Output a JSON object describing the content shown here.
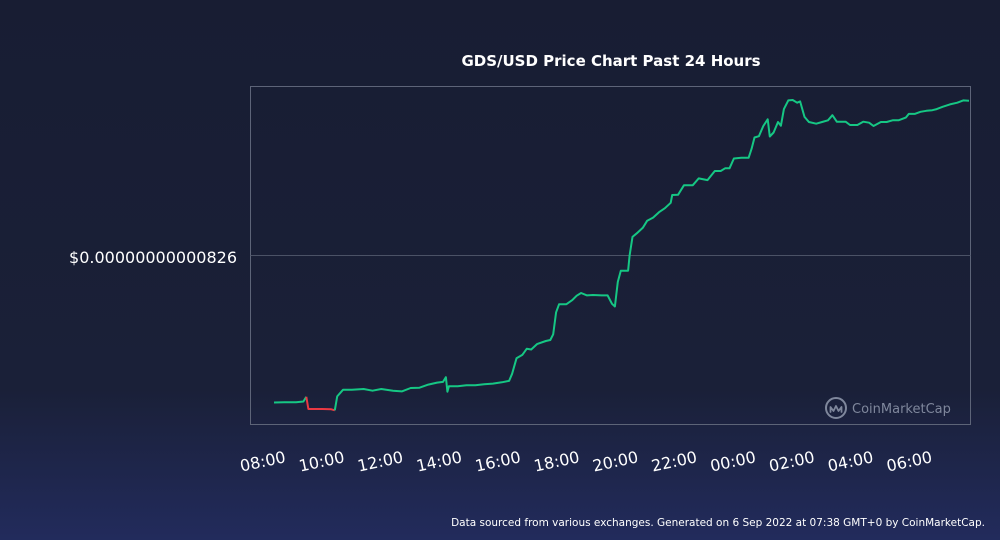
{
  "chart_data": {
    "type": "line",
    "title": "GDS/USD Price Chart Past 24 Hours",
    "xlabel": "",
    "ylabel": "",
    "ytick_labels": [
      "$0.00000000000826"
    ],
    "xtick_labels": [
      "08:00",
      "10:00",
      "12:00",
      "14:00",
      "16:00",
      "18:00",
      "20:00",
      "22:00",
      "00:00",
      "02:00",
      "04:00",
      "06:00"
    ],
    "x_unit": "hours since 06:00",
    "xlim": [
      1.15,
      25.65
    ],
    "ylim": [
      0,
      100
    ],
    "y_unit": "relative price (0 = chart bottom, 100 = chart top)",
    "grid": "single horizontal line at $0.00000000000826",
    "colors": {
      "up": "#16c784",
      "down": "#ea3943",
      "frame": "#5d6478",
      "gridline": "#4b5266"
    },
    "series": [
      {
        "values": [
          [
            1.95,
            6.5
          ],
          [
            2.3,
            6.6
          ],
          [
            2.7,
            6.6
          ],
          [
            2.95,
            6.8
          ],
          [
            3.05,
            8.2
          ],
          [
            3.12,
            4.6
          ],
          [
            3.3,
            4.6
          ],
          [
            3.6,
            4.6
          ],
          [
            3.9,
            4.5
          ],
          [
            4.02,
            4.2
          ],
          [
            4.1,
            8.3
          ],
          [
            4.3,
            10.3
          ],
          [
            4.6,
            10.3
          ],
          [
            5.0,
            10.5
          ],
          [
            5.3,
            10.0
          ],
          [
            5.6,
            10.5
          ],
          [
            6.0,
            10.0
          ],
          [
            6.3,
            9.8
          ],
          [
            6.6,
            10.8
          ],
          [
            6.9,
            10.9
          ],
          [
            7.2,
            11.8
          ],
          [
            7.5,
            12.4
          ],
          [
            7.7,
            12.6
          ],
          [
            7.8,
            14.0
          ],
          [
            7.85,
            9.7
          ],
          [
            7.9,
            11.3
          ],
          [
            8.2,
            11.3
          ],
          [
            8.5,
            11.6
          ],
          [
            8.8,
            11.6
          ],
          [
            9.1,
            11.9
          ],
          [
            9.4,
            12.1
          ],
          [
            9.7,
            12.5
          ],
          [
            9.95,
            12.9
          ],
          [
            10.05,
            15.0
          ],
          [
            10.2,
            19.6
          ],
          [
            10.4,
            20.6
          ],
          [
            10.55,
            22.4
          ],
          [
            10.7,
            22.2
          ],
          [
            10.9,
            23.8
          ],
          [
            11.2,
            24.7
          ],
          [
            11.35,
            25.0
          ],
          [
            11.45,
            26.7
          ],
          [
            11.55,
            33.2
          ],
          [
            11.65,
            35.6
          ],
          [
            11.9,
            35.6
          ],
          [
            12.1,
            36.8
          ],
          [
            12.25,
            38.1
          ],
          [
            12.4,
            38.9
          ],
          [
            12.6,
            38.2
          ],
          [
            12.8,
            38.3
          ],
          [
            13.1,
            38.2
          ],
          [
            13.3,
            38.2
          ],
          [
            13.45,
            35.7
          ],
          [
            13.55,
            34.9
          ],
          [
            13.65,
            42.2
          ],
          [
            13.75,
            45.5
          ],
          [
            14.0,
            45.5
          ],
          [
            14.05,
            50.0
          ],
          [
            14.15,
            55.5
          ],
          [
            14.3,
            56.6
          ],
          [
            14.5,
            58.2
          ],
          [
            14.65,
            60.3
          ],
          [
            14.85,
            61.2
          ],
          [
            15.05,
            62.8
          ],
          [
            15.25,
            64.0
          ],
          [
            15.45,
            65.6
          ],
          [
            15.5,
            67.9
          ],
          [
            15.7,
            68.0
          ],
          [
            15.9,
            70.8
          ],
          [
            16.2,
            70.8
          ],
          [
            16.4,
            72.8
          ],
          [
            16.7,
            72.3
          ],
          [
            16.95,
            75.0
          ],
          [
            17.15,
            75.0
          ],
          [
            17.3,
            75.8
          ],
          [
            17.45,
            75.8
          ],
          [
            17.6,
            78.7
          ],
          [
            17.85,
            78.9
          ],
          [
            18.1,
            78.9
          ],
          [
            18.2,
            81.6
          ],
          [
            18.3,
            84.9
          ],
          [
            18.45,
            85.3
          ],
          [
            18.6,
            88.3
          ],
          [
            18.75,
            90.3
          ],
          [
            18.82,
            85.2
          ],
          [
            18.95,
            86.4
          ],
          [
            19.1,
            89.5
          ],
          [
            19.2,
            88.4
          ],
          [
            19.3,
            93.3
          ],
          [
            19.45,
            95.9
          ],
          [
            19.6,
            96.0
          ],
          [
            19.75,
            95.2
          ],
          [
            19.85,
            95.6
          ],
          [
            20.0,
            91.0
          ],
          [
            20.15,
            89.5
          ],
          [
            20.4,
            89.0
          ],
          [
            20.6,
            89.5
          ],
          [
            20.8,
            90.0
          ],
          [
            20.95,
            91.5
          ],
          [
            21.1,
            89.6
          ],
          [
            21.4,
            89.6
          ],
          [
            21.55,
            88.6
          ],
          [
            21.8,
            88.6
          ],
          [
            22.0,
            89.6
          ],
          [
            22.2,
            89.3
          ],
          [
            22.35,
            88.3
          ],
          [
            22.6,
            89.5
          ],
          [
            22.8,
            89.5
          ],
          [
            23.0,
            90.0
          ],
          [
            23.2,
            90.0
          ],
          [
            23.45,
            90.8
          ],
          [
            23.55,
            91.9
          ],
          [
            23.75,
            91.9
          ],
          [
            23.95,
            92.5
          ],
          [
            24.15,
            92.8
          ],
          [
            24.35,
            93.0
          ],
          [
            24.5,
            93.3
          ],
          [
            24.7,
            94.0
          ],
          [
            24.95,
            94.7
          ],
          [
            25.2,
            95.2
          ],
          [
            25.4,
            95.9
          ],
          [
            25.6,
            95.8
          ]
        ]
      }
    ]
  },
  "watermark": {
    "icon": "coinmarketcap-logo-icon",
    "text": "CoinMarketCap"
  },
  "footer": {
    "text": "Data sourced from various exchanges. Generated on 6 Sep 2022 at 07:38 GMT+0 by CoinMarketCap."
  }
}
